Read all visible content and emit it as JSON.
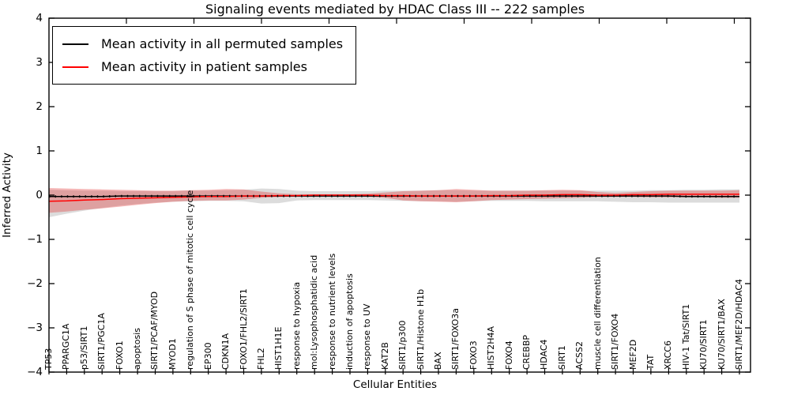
{
  "chart_data": {
    "type": "line",
    "title": "Signaling events mediated by HDAC Class III -- 222 samples",
    "xlabel": "Cellular Entities",
    "ylabel": "Inferred Activity",
    "ylim": [
      -4,
      4
    ],
    "yticks": [
      4,
      3,
      2,
      1,
      0,
      -1,
      -2,
      -3,
      -4
    ],
    "ytick_labels": [
      "4",
      "3",
      "2",
      "1",
      "0",
      "−1",
      "−2",
      "−3",
      "−4"
    ],
    "grid": false,
    "legend_position": "upper left",
    "categories": [
      "TP53",
      "PPARGC1A",
      "p53/SIRT1",
      "SIRT1/PGC1A",
      "FOXO1",
      "apoptosis",
      "SIRT1/PCAF/MYOD",
      "MYOD1",
      "regulation of S phase of mitotic cell cycle",
      "EP300",
      "CDKN1A",
      "FOXO1/FHL2/SIRT1",
      "FHL2",
      "HIST1H1E",
      "response to hypoxia",
      "mol:Lysophosphatidic acid",
      "response to nutrient levels",
      "induction of apoptosis",
      "response to UV",
      "KAT2B",
      "SIRT1/p300",
      "SIRT1/Histone H1b",
      "BAX",
      "SIRT1/FOXO3a",
      "FOXO3",
      "HIST2H4A",
      "FOXO4",
      "CREBBP",
      "HDAC4",
      "SIRT1",
      "ACSS2",
      "muscle cell differentiation",
      "SIRT1/FOXO4",
      "MEF2D",
      "TAT",
      "XRCC6",
      "HIV-1 Tat/SIRT1",
      "KU70/SIRT1",
      "KU70/SIRT1/BAX",
      "SIRT1/MEF2D/HDAC4"
    ],
    "series": [
      {
        "key": "permuted",
        "name": "Mean activity in all permuted samples",
        "color": "#000000",
        "band_color": "rgba(130,130,130,0.28)",
        "dotted_markers": true,
        "values": [
          -0.03,
          -0.03,
          -0.03,
          -0.03,
          -0.02,
          -0.02,
          -0.02,
          -0.02,
          -0.02,
          -0.02,
          -0.02,
          -0.02,
          -0.02,
          -0.02,
          -0.02,
          -0.02,
          -0.02,
          -0.02,
          -0.02,
          -0.02,
          -0.02,
          -0.02,
          -0.02,
          -0.02,
          -0.02,
          -0.02,
          -0.02,
          -0.02,
          -0.02,
          -0.02,
          -0.02,
          -0.02,
          -0.02,
          -0.02,
          -0.02,
          -0.02,
          -0.03,
          -0.03,
          -0.03,
          -0.03
        ],
        "band_upper": [
          0.12,
          0.11,
          0.1,
          0.1,
          0.09,
          0.09,
          0.09,
          0.09,
          0.1,
          0.1,
          0.11,
          0.12,
          0.15,
          0.14,
          0.1,
          0.09,
          0.09,
          0.09,
          0.09,
          0.1,
          0.1,
          0.1,
          0.11,
          0.11,
          0.1,
          0.1,
          0.1,
          0.1,
          0.1,
          0.1,
          0.1,
          0.1,
          0.1,
          0.1,
          0.11,
          0.11,
          0.12,
          0.12,
          0.13,
          0.13
        ],
        "band_lower": [
          -0.5,
          -0.42,
          -0.35,
          -0.29,
          -0.24,
          -0.2,
          -0.17,
          -0.15,
          -0.14,
          -0.13,
          -0.13,
          -0.14,
          -0.19,
          -0.18,
          -0.12,
          -0.11,
          -0.11,
          -0.11,
          -0.11,
          -0.12,
          -0.13,
          -0.14,
          -0.14,
          -0.15,
          -0.14,
          -0.13,
          -0.13,
          -0.13,
          -0.14,
          -0.14,
          -0.14,
          -0.14,
          -0.15,
          -0.16,
          -0.16,
          -0.17,
          -0.17,
          -0.17,
          -0.17,
          -0.17
        ]
      },
      {
        "key": "patient",
        "name": "Mean activity in patient samples",
        "color": "#ff0000",
        "band_color": "rgba(225,45,45,0.34)",
        "dotted_markers": false,
        "values": [
          -0.14,
          -0.13,
          -0.11,
          -0.1,
          -0.08,
          -0.07,
          -0.06,
          -0.05,
          -0.04,
          -0.03,
          -0.03,
          -0.02,
          -0.02,
          -0.01,
          -0.01,
          0.0,
          0.0,
          0.0,
          0.0,
          -0.01,
          -0.01,
          -0.02,
          -0.02,
          -0.02,
          -0.02,
          -0.01,
          -0.01,
          0.0,
          0.0,
          0.01,
          0.01,
          0.0,
          0.0,
          0.01,
          0.01,
          0.02,
          0.02,
          0.02,
          0.02,
          0.02
        ],
        "band_upper": [
          0.16,
          0.15,
          0.14,
          0.13,
          0.12,
          0.11,
          0.1,
          0.1,
          0.11,
          0.12,
          0.14,
          0.13,
          0.08,
          0.04,
          0.02,
          0.02,
          0.02,
          0.02,
          0.03,
          0.06,
          0.09,
          0.1,
          0.11,
          0.14,
          0.12,
          0.1,
          0.1,
          0.1,
          0.11,
          0.12,
          0.11,
          0.07,
          0.05,
          0.07,
          0.09,
          0.1,
          0.1,
          0.1,
          0.1,
          0.11
        ],
        "band_lower": [
          -0.4,
          -0.37,
          -0.33,
          -0.3,
          -0.26,
          -0.22,
          -0.18,
          -0.15,
          -0.13,
          -0.12,
          -0.12,
          -0.1,
          -0.06,
          -0.04,
          -0.03,
          -0.02,
          -0.02,
          -0.02,
          -0.03,
          -0.06,
          -0.12,
          -0.14,
          -0.15,
          -0.16,
          -0.14,
          -0.11,
          -0.1,
          -0.09,
          -0.08,
          -0.07,
          -0.06,
          -0.04,
          -0.04,
          -0.04,
          -0.05,
          -0.05,
          -0.05,
          -0.05,
          -0.06,
          -0.06
        ]
      }
    ]
  }
}
